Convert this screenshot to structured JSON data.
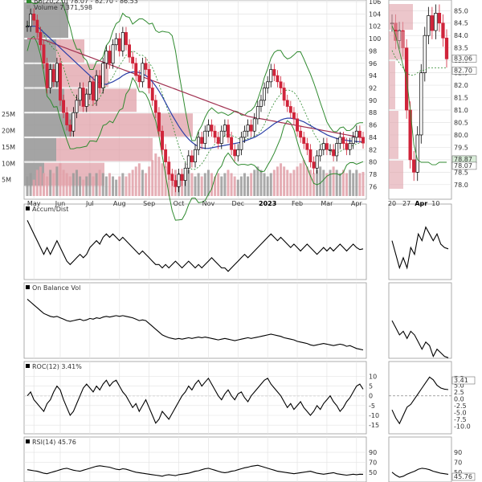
{
  "colors": {
    "price_up": "#000000",
    "price_down": "#d0243a",
    "bb_band": "#2f8a2f",
    "bb_mid": "#2f8a2f",
    "sma_long": "#a03050",
    "sma_mid": "#2a3fa8",
    "volume_up": "#9a9a9a",
    "volume_down": "#e0a0a8",
    "vbp_up": "#9a9a9a",
    "vbp_down": "#e0a0a8",
    "line": "#000000",
    "grid": "#e3e3e3",
    "zero_line": "#888888"
  },
  "main_chart": {
    "legend": {
      "bb_label": "BB(20,2.0) 78.07 - 82.70 - 86.53",
      "volume_label": "Volume 7,371,598"
    },
    "price_axis": [
      {
        "value": 106,
        "label": "106"
      },
      {
        "value": 104,
        "label": "104"
      },
      {
        "value": 102,
        "label": "102"
      },
      {
        "value": 100,
        "label": "100"
      },
      {
        "value": 98,
        "label": "98"
      },
      {
        "value": 96,
        "label": "96"
      },
      {
        "value": 94,
        "label": "94"
      },
      {
        "value": 92,
        "label": "92"
      },
      {
        "value": 90,
        "label": "90"
      },
      {
        "value": 88,
        "label": "88"
      },
      {
        "value": 86,
        "label": "86"
      },
      {
        "value": 84,
        "label": "84"
      },
      {
        "value": 82,
        "label": "82"
      },
      {
        "value": 80,
        "label": "80"
      },
      {
        "value": 78,
        "label": "78"
      },
      {
        "value": 76,
        "label": "76"
      }
    ],
    "volume_axis": [
      "25M",
      "20M",
      "15M",
      "10M",
      "5M"
    ],
    "x_labels": [
      {
        "t": 2,
        "label": "May",
        "bold": false
      },
      {
        "t": 10,
        "label": "Jun",
        "bold": false
      },
      {
        "t": 19,
        "label": "Jul",
        "bold": false
      },
      {
        "t": 28,
        "label": "Aug",
        "bold": false
      },
      {
        "t": 37,
        "label": "Sep",
        "bold": false
      },
      {
        "t": 46,
        "label": "Oct",
        "bold": false
      },
      {
        "t": 55,
        "label": "Nov",
        "bold": false
      },
      {
        "t": 64,
        "label": "Dec",
        "bold": false
      },
      {
        "t": 73,
        "label": "2023",
        "bold": true
      },
      {
        "t": 82,
        "label": "Feb",
        "bold": false
      },
      {
        "t": 91,
        "label": "Mar",
        "bold": false
      },
      {
        "t": 100,
        "label": "Apr",
        "bold": false
      }
    ]
  },
  "zoom_chart": {
    "price_axis": [
      {
        "value": 85.0,
        "label": "85.0"
      },
      {
        "value": 84.5,
        "label": "84.5"
      },
      {
        "value": 84.0,
        "label": "84.0"
      },
      {
        "value": 83.5,
        "label": "83.5"
      },
      {
        "value": 83.0,
        "label": "83.0"
      },
      {
        "value": 82.5,
        "label": "82.5"
      },
      {
        "value": 82.0,
        "label": "82.0"
      },
      {
        "value": 81.5,
        "label": "81.5"
      },
      {
        "value": 81.0,
        "label": "81.0"
      },
      {
        "value": 80.5,
        "label": "80.5"
      },
      {
        "value": 80.0,
        "label": "80.0"
      },
      {
        "value": 79.5,
        "label": "79.5"
      },
      {
        "value": 79.0,
        "label": "79.0"
      },
      {
        "value": 78.5,
        "label": "78.5"
      },
      {
        "value": 78.0,
        "label": "78.0"
      }
    ],
    "last_price_tag": "83.06",
    "bb_mid_tag": "82.70",
    "bb_low_tag": "78.07",
    "bb_low_tag2": "78.87",
    "x_labels": [
      {
        "t": 0,
        "label": "20",
        "bold": false
      },
      {
        "t": 4,
        "label": "27",
        "bold": false
      },
      {
        "t": 8,
        "label": "Apr",
        "bold": true
      },
      {
        "t": 12,
        "label": "10",
        "bold": false
      }
    ]
  },
  "panels": {
    "accum_dist": {
      "title": "Accum/Dist"
    },
    "obv": {
      "title": "On Balance Vol"
    },
    "roc": {
      "title": "ROC(12) 3.41%",
      "axis_main": [
        "10",
        "5",
        "0",
        "-5",
        "-10",
        "-15"
      ],
      "axis_zoom": [
        "7.5",
        "5.0",
        "2.5",
        "0.0",
        "-2.5",
        "-5.0",
        "-7.5",
        "-10.0"
      ],
      "last_tag": "3.41"
    },
    "rsi": {
      "title": "RSI(14) 45.76",
      "axis": [
        "90",
        "70",
        "50"
      ],
      "last_tag": "45.76"
    }
  },
  "chart_data": {
    "type": "line",
    "title": "",
    "series": [
      {
        "name": "Price (close)",
        "values": [
          102,
          104,
          103,
          101,
          99,
          96,
          92,
          95,
          93,
          96,
          90,
          88,
          86,
          85,
          88,
          90,
          92,
          89,
          91,
          93,
          90,
          94,
          92,
          96,
          98,
          96,
          99,
          100,
          98,
          101,
          99,
          97,
          96,
          94,
          93,
          96,
          95,
          92,
          90,
          88,
          85,
          82,
          80,
          78,
          77,
          76,
          78,
          77,
          79,
          81,
          80,
          82,
          84,
          83,
          85,
          86,
          85,
          84,
          83,
          85,
          86,
          84,
          82,
          81,
          82,
          84,
          85,
          86,
          85,
          87,
          89,
          90,
          92,
          93,
          95,
          94,
          93,
          92,
          90,
          89,
          88,
          87,
          85,
          84,
          83,
          82,
          80,
          79,
          81,
          82,
          83,
          82,
          82,
          81,
          83,
          84,
          83,
          82,
          83,
          84,
          85,
          84,
          83.06
        ]
      },
      {
        "name": "SMA(200)",
        "values": [
          100,
          100,
          100,
          100,
          99.9,
          99.8,
          99.6,
          99.4,
          99.2,
          99,
          98.8,
          98.6,
          98.4,
          98.2,
          98,
          97.8,
          97.6,
          97.4,
          97.2,
          97,
          96.8,
          96.6,
          96.4,
          96.2,
          96,
          95.8,
          95.6,
          95.4,
          95.2,
          95,
          94.8,
          94.6,
          94.4,
          94.2,
          94,
          93.8,
          93.6,
          93.4,
          93.2,
          93,
          92.8,
          92.6,
          92.4,
          92.2,
          92,
          91.8,
          91.6,
          91.4,
          91.2,
          91,
          90.8,
          90.6,
          90.4,
          90.2,
          90,
          89.8,
          89.6,
          89.4,
          89.2,
          89,
          88.8,
          88.6,
          88.4,
          88.2,
          88,
          87.8,
          87.6,
          87.4,
          87.3,
          87.2,
          87.1,
          87,
          86.9,
          86.8,
          86.7,
          86.6,
          86.5,
          86.4,
          86.3,
          86.2,
          86.1,
          86,
          85.9,
          85.8,
          85.7,
          85.6,
          85.5,
          85.4,
          85.3,
          85.2,
          85.1,
          85,
          84.9,
          84.8,
          84.7,
          84.6,
          84.5,
          84.4,
          84.3,
          84.2,
          84.1,
          84,
          83.9
        ]
      },
      {
        "name": "SMA(50)",
        "values": [
          102,
          102,
          102,
          102,
          101.5,
          101,
          100.5,
          100,
          99.5,
          99,
          98.5,
          98,
          97.5,
          97,
          96.5,
          96,
          95.5,
          95,
          94.5,
          94,
          93.5,
          93,
          92.8,
          92.6,
          92.6,
          92.8,
          93,
          93.3,
          93.6,
          94,
          94.3,
          94.5,
          94.6,
          94.6,
          94.5,
          94.3,
          94,
          93.6,
          93,
          92.3,
          91.5,
          90.6,
          89.6,
          88.6,
          87.6,
          86.7,
          85.8,
          85,
          84.3,
          83.7,
          83.2,
          82.8,
          82.5,
          82.3,
          82.2,
          82.2,
          82.3,
          82.4,
          82.5,
          82.6,
          82.7,
          82.8,
          82.9,
          83,
          83.1,
          83.2,
          83.4,
          83.6,
          83.8,
          84,
          84.3,
          84.6,
          85,
          85.4,
          85.8,
          86.2,
          86.5,
          86.8,
          87,
          87.1,
          87.1,
          87,
          86.9,
          86.7,
          86.5,
          86.2,
          85.9,
          85.6,
          85.3,
          85,
          84.7,
          84.4,
          84.2,
          84,
          83.8,
          83.7,
          83.6,
          83.5,
          83.4,
          83.4,
          83.3,
          83.3,
          83.3
        ]
      },
      {
        "name": "Volume (M)",
        "values": [
          6,
          7,
          5,
          8,
          9,
          7,
          6,
          8,
          7,
          9,
          10,
          8,
          7,
          6,
          7,
          8,
          6,
          5,
          6,
          7,
          6,
          7,
          8,
          7,
          6,
          7,
          6,
          5,
          6,
          7,
          6,
          7,
          8,
          9,
          10,
          8,
          7,
          9,
          11,
          13,
          12,
          10,
          9,
          8,
          7,
          8,
          7,
          6,
          7,
          8,
          7,
          6,
          7,
          6,
          7,
          8,
          7,
          6,
          7,
          6,
          7,
          8,
          7,
          6,
          5,
          6,
          7,
          6,
          7,
          8,
          9,
          8,
          7,
          6,
          7,
          8,
          9,
          10,
          9,
          8,
          7,
          8,
          9,
          10,
          11,
          9,
          8,
          7,
          8,
          9,
          8,
          7,
          8,
          9,
          8,
          7,
          8,
          7,
          8,
          7,
          8,
          7,
          7.37
        ]
      },
      {
        "name": "Accum/Dist",
        "values": [
          9,
          8,
          7,
          6,
          5,
          4,
          5,
          4,
          5,
          6,
          5,
          4,
          3,
          2.5,
          3,
          3.5,
          4,
          3.5,
          4,
          5,
          5.5,
          6,
          5.5,
          6.5,
          7,
          6.5,
          7,
          6.5,
          6,
          6.5,
          6,
          5.5,
          5,
          4.5,
          4,
          4.5,
          4,
          3.5,
          3,
          2.5,
          2.5,
          2,
          2.5,
          2,
          2.5,
          3,
          2.5,
          2,
          2.5,
          3,
          2.5,
          2,
          2.5,
          2,
          2.5,
          3,
          3.5,
          3,
          2.5,
          2,
          2,
          1.5,
          2,
          2.5,
          3,
          3.5,
          4,
          3.5,
          4,
          4.5,
          5,
          5.5,
          6,
          6.5,
          7,
          6.5,
          6,
          6.5,
          6,
          5.5,
          5,
          5.5,
          5,
          4.5,
          5,
          5.5,
          5,
          4.5,
          4,
          4.5,
          5,
          4.5,
          5,
          4.5,
          5,
          5.5,
          5,
          4.5,
          5,
          5.5,
          5,
          4.7,
          4.8
        ]
      },
      {
        "name": "On Balance Vol",
        "values": [
          10,
          9.6,
          9.2,
          8.8,
          8.4,
          8,
          7.8,
          7.6,
          7.5,
          7.6,
          7.4,
          7.2,
          7,
          6.9,
          7,
          7.1,
          7.2,
          7,
          7.1,
          7.3,
          7.2,
          7.4,
          7.3,
          7.5,
          7.6,
          7.5,
          7.6,
          7.7,
          7.6,
          7.7,
          7.6,
          7.5,
          7.4,
          7.2,
          7,
          7.1,
          7,
          6.6,
          6.2,
          5.8,
          5.4,
          5,
          4.8,
          4.6,
          4.5,
          4.4,
          4.5,
          4.4,
          4.5,
          4.6,
          4.5,
          4.6,
          4.7,
          4.6,
          4.7,
          4.6,
          4.5,
          4.4,
          4.3,
          4.4,
          4.5,
          4.4,
          4.3,
          4.2,
          4.3,
          4.4,
          4.5,
          4.6,
          4.5,
          4.6,
          4.7,
          4.8,
          4.9,
          5,
          5.1,
          5,
          4.9,
          4.8,
          4.6,
          4.5,
          4.4,
          4.3,
          4.1,
          4,
          3.9,
          3.8,
          3.6,
          3.5,
          3.6,
          3.7,
          3.8,
          3.7,
          3.6,
          3.5,
          3.6,
          3.7,
          3.6,
          3.4,
          3.5,
          3.3,
          3.1,
          3,
          2.9
        ]
      },
      {
        "name": "ROC(12)",
        "values": [
          0,
          2,
          -2,
          -4,
          -6,
          -8,
          -4,
          -2,
          2,
          5,
          3,
          -2,
          -6,
          -10,
          -8,
          -4,
          0,
          4,
          6,
          4,
          2,
          5,
          3,
          6,
          8,
          5,
          7,
          8,
          5,
          2,
          0,
          -3,
          -6,
          -4,
          -8,
          -5,
          -2,
          -6,
          -10,
          -14,
          -12,
          -8,
          -10,
          -12,
          -9,
          -6,
          -3,
          0,
          2,
          5,
          3,
          6,
          8,
          5,
          7,
          9,
          6,
          3,
          0,
          -2,
          1,
          3,
          0,
          -2,
          1,
          2,
          -1,
          -3,
          0,
          2,
          4,
          6,
          8,
          9,
          6,
          4,
          2,
          0,
          -3,
          -6,
          -4,
          -7,
          -5,
          -3,
          -6,
          -8,
          -10,
          -8,
          -5,
          -7,
          -4,
          -2,
          0,
          -3,
          -5,
          -8,
          -6,
          -3,
          -1,
          2,
          5,
          6,
          3.41
        ]
      },
      {
        "name": "RSI(14)",
        "values": [
          55,
          54,
          53,
          52,
          50,
          48,
          47,
          49,
          51,
          53,
          55,
          57,
          58,
          56,
          54,
          53,
          52,
          54,
          56,
          58,
          60,
          62,
          63,
          62,
          61,
          60,
          58,
          56,
          55,
          57,
          56,
          54,
          52,
          50,
          49,
          48,
          47,
          46,
          45,
          44,
          43,
          42,
          44,
          45,
          44,
          43,
          45,
          46,
          47,
          48,
          50,
          52,
          53,
          55,
          57,
          58,
          56,
          54,
          52,
          50,
          49,
          50,
          52,
          53,
          55,
          57,
          59,
          60,
          62,
          63,
          64,
          62,
          60,
          58,
          56,
          54,
          52,
          51,
          50,
          49,
          48,
          47,
          48,
          49,
          50,
          51,
          52,
          50,
          48,
          47,
          46,
          47,
          48,
          49,
          47,
          46,
          45,
          44,
          45,
          46,
          45,
          46,
          45.76
        ]
      }
    ],
    "ylim": [
      75,
      106
    ]
  }
}
